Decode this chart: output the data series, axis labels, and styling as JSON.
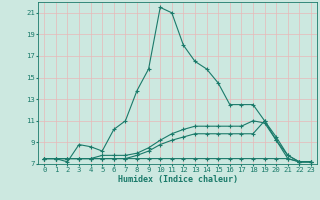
{
  "title": "",
  "xlabel": "Humidex (Indice chaleur)",
  "background_color": "#cce8e0",
  "grid_color": "#e8b8b8",
  "line_color": "#1a7a6a",
  "xlim": [
    -0.5,
    23.5
  ],
  "ylim": [
    7,
    22
  ],
  "yticks": [
    7,
    9,
    11,
    13,
    15,
    17,
    19,
    21
  ],
  "xticks": [
    0,
    1,
    2,
    3,
    4,
    5,
    6,
    7,
    8,
    9,
    10,
    11,
    12,
    13,
    14,
    15,
    16,
    17,
    18,
    19,
    20,
    21,
    22,
    23
  ],
  "line1_x": [
    0,
    1,
    2,
    3,
    4,
    5,
    6,
    7,
    8,
    9,
    10,
    11,
    12,
    13,
    14,
    15,
    16,
    17,
    18,
    19,
    20,
    21,
    22,
    23
  ],
  "line1_y": [
    7.5,
    7.5,
    7.2,
    8.8,
    8.6,
    8.2,
    10.2,
    11.0,
    13.8,
    15.8,
    21.5,
    21.0,
    18.0,
    16.5,
    15.8,
    14.5,
    12.5,
    12.5,
    12.5,
    11.0,
    9.2,
    7.5,
    7.2,
    7.2
  ],
  "line2_x": [
    0,
    1,
    2,
    3,
    4,
    5,
    6,
    7,
    8,
    9,
    10,
    11,
    12,
    13,
    14,
    15,
    16,
    17,
    18,
    19,
    20,
    21,
    22,
    23
  ],
  "line2_y": [
    7.5,
    7.5,
    7.5,
    7.5,
    7.5,
    7.5,
    7.5,
    7.5,
    7.8,
    8.2,
    8.8,
    9.2,
    9.5,
    9.8,
    9.8,
    9.8,
    9.8,
    9.8,
    9.8,
    11.0,
    9.5,
    7.8,
    7.2,
    7.2
  ],
  "line3_x": [
    0,
    1,
    2,
    3,
    4,
    5,
    6,
    7,
    8,
    9,
    10,
    11,
    12,
    13,
    14,
    15,
    16,
    17,
    18,
    19,
    20,
    21,
    22,
    23
  ],
  "line3_y": [
    7.5,
    7.5,
    7.5,
    7.5,
    7.5,
    7.8,
    7.8,
    7.8,
    8.0,
    8.5,
    9.2,
    9.8,
    10.2,
    10.5,
    10.5,
    10.5,
    10.5,
    10.5,
    11.0,
    10.8,
    9.2,
    7.8,
    7.2,
    7.2
  ],
  "line4_x": [
    0,
    1,
    2,
    3,
    4,
    5,
    6,
    7,
    8,
    9,
    10,
    11,
    12,
    13,
    14,
    15,
    16,
    17,
    18,
    19,
    20,
    21,
    22,
    23
  ],
  "line4_y": [
    7.5,
    7.5,
    7.5,
    7.5,
    7.5,
    7.5,
    7.5,
    7.5,
    7.5,
    7.5,
    7.5,
    7.5,
    7.5,
    7.5,
    7.5,
    7.5,
    7.5,
    7.5,
    7.5,
    7.5,
    7.5,
    7.5,
    7.2,
    7.2
  ],
  "xlabel_fontsize": 6.0,
  "tick_fontsize": 5.2
}
